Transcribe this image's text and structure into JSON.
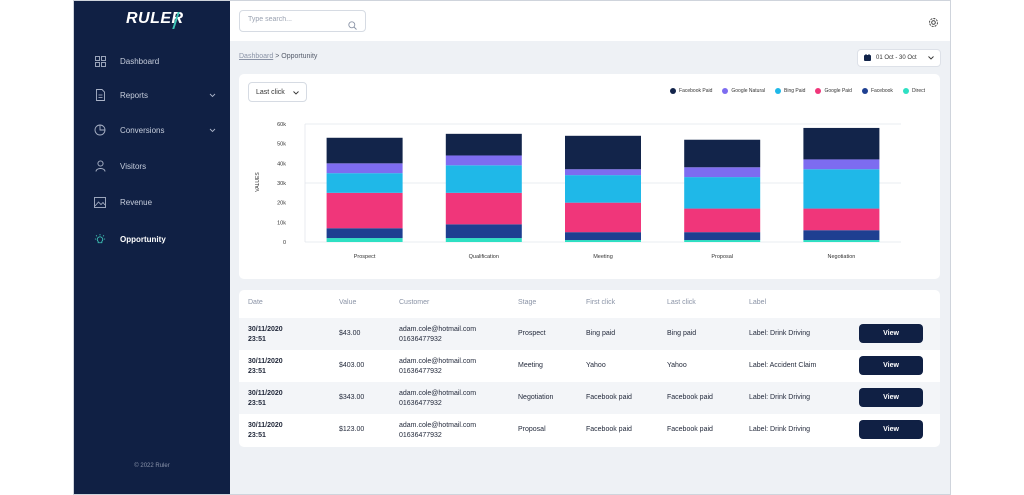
{
  "brand": {
    "logo": "RULER"
  },
  "sidebar": {
    "items": [
      {
        "label": "Dashboard",
        "icon": "dashboard-grid-icon"
      },
      {
        "label": "Reports",
        "icon": "document-icon"
      },
      {
        "label": "Conversions",
        "icon": "pie-chart-icon"
      },
      {
        "label": "Visitors",
        "icon": "user-icon"
      },
      {
        "label": "Revenue",
        "icon": "image-icon"
      },
      {
        "label": "Opportunity",
        "icon": "lightbulb-icon"
      }
    ],
    "copyright": "© 2022 Ruler"
  },
  "topbar": {
    "search_placeholder": "Type search..."
  },
  "breadcrumb": {
    "parent": "Dashboard",
    "separator": ">",
    "current": "Opportunity"
  },
  "date_range": "01 Oct - 30 Oct",
  "attribution": {
    "selected": "Last click"
  },
  "colors": {
    "facebook_paid": "#12244a",
    "google_natural": "#7d6cf0",
    "bing_paid": "#1fb8e8",
    "google_paid": "#f0367a",
    "facebook": "#1e3f91",
    "direct": "#2ee0c3",
    "sidebar": "#102044"
  },
  "chart_data": {
    "type": "bar",
    "stacked": true,
    "categories": [
      "Prospect",
      "Qualification",
      "Meeting",
      "Proposal",
      "Negotiation"
    ],
    "ylabel": "VALUES",
    "ylim": [
      0,
      60000
    ],
    "yticks": [
      "0",
      "10k",
      "20k",
      "30k",
      "40k",
      "50k",
      "60k"
    ],
    "grid": true,
    "legend_position": "top-right",
    "series": [
      {
        "name": "Direct",
        "color": "#2ee0c3",
        "values": [
          2000,
          2000,
          1000,
          1000,
          1000
        ]
      },
      {
        "name": "Facebook",
        "color": "#1e3f91",
        "values": [
          5000,
          7000,
          4000,
          4000,
          5000
        ]
      },
      {
        "name": "Google Paid",
        "color": "#f0367a",
        "values": [
          18000,
          16000,
          15000,
          12000,
          11000
        ]
      },
      {
        "name": "Bing Paid",
        "color": "#1fb8e8",
        "values": [
          10000,
          14000,
          14000,
          16000,
          20000
        ]
      },
      {
        "name": "Google Natural",
        "color": "#7d6cf0",
        "values": [
          5000,
          5000,
          3000,
          5000,
          5000
        ]
      },
      {
        "name": "Facebook Paid",
        "color": "#12244a",
        "values": [
          13000,
          11000,
          17000,
          14000,
          16000
        ]
      }
    ]
  },
  "legend_order": [
    "Facebook Paid",
    "Google Natural",
    "Bing Paid",
    "Google Paid",
    "Facebook",
    "Direct"
  ],
  "table": {
    "headers": [
      "Date",
      "Value",
      "Customer",
      "Stage",
      "First click",
      "Last click",
      "Label"
    ],
    "rows": [
      {
        "date": "30/11/2020",
        "time": "23:51",
        "value": "$43.00",
        "email": "adam.cole@hotmail.com",
        "phone": "01636477932",
        "stage": "Prospect",
        "first_click": "Bing paid",
        "last_click": "Bing paid",
        "label": "Label: Drink Driving",
        "action": "View"
      },
      {
        "date": "30/11/2020",
        "time": "23:51",
        "value": "$403.00",
        "email": "adam.cole@hotmail.com",
        "phone": "01636477932",
        "stage": "Meeting",
        "first_click": "Yahoo",
        "last_click": "Yahoo",
        "label": "Label: Accident Claim",
        "action": "View"
      },
      {
        "date": "30/11/2020",
        "time": "23:51",
        "value": "$343.00",
        "email": "adam.cole@hotmail.com",
        "phone": "01636477932",
        "stage": "Negotiation",
        "first_click": "Facebook paid",
        "last_click": "Facebook paid",
        "label": "Label: Drink Driving",
        "action": "View"
      },
      {
        "date": "30/11/2020",
        "time": "23:51",
        "value": "$123.00",
        "email": "adam.cole@hotmail.com",
        "phone": "01636477932",
        "stage": "Proposal",
        "first_click": "Facebook paid",
        "last_click": "Facebook paid",
        "label": "Label: Drink Driving",
        "action": "View"
      }
    ]
  }
}
